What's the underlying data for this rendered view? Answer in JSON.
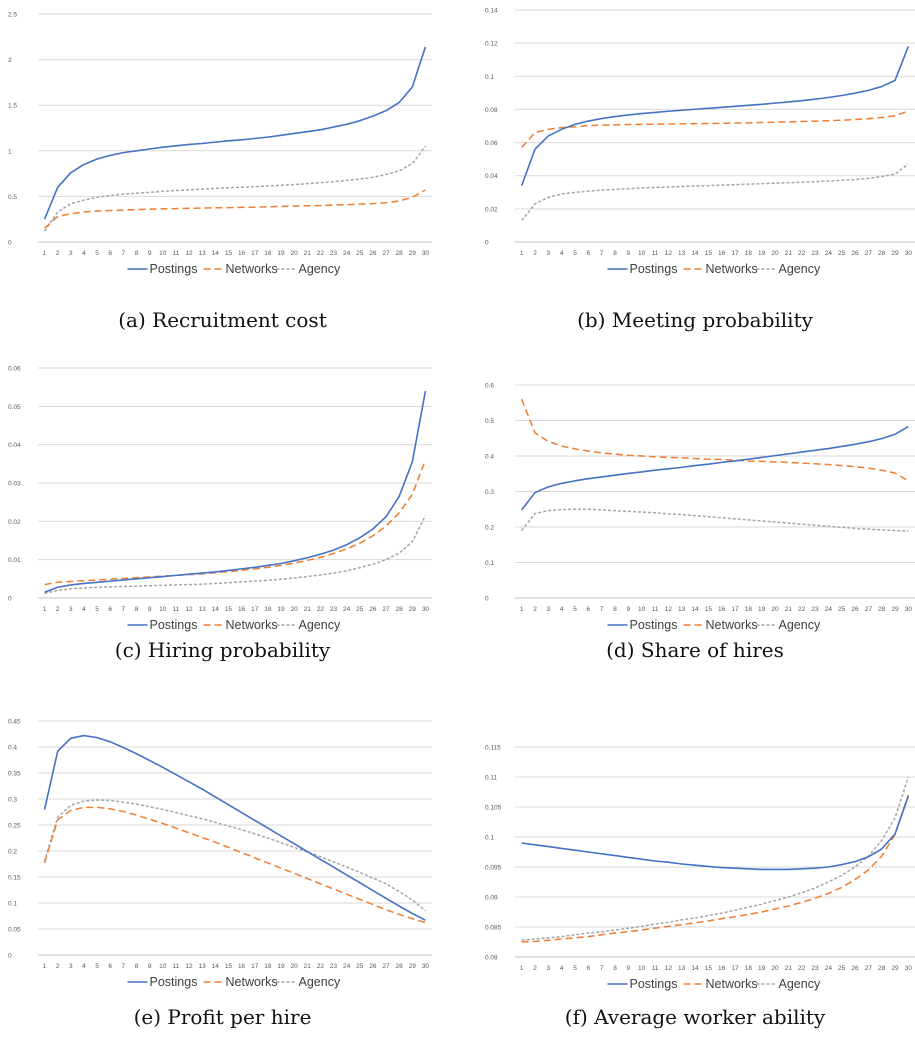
{
  "legend_labels": [
    "Postings",
    "Networks",
    "Agency"
  ],
  "series_colors": {
    "Postings": "#4472c4",
    "Networks": "#ed7d31",
    "Agency": "#a5a5a5"
  },
  "chart_data": [
    {
      "type": "line",
      "caption": "(a) Recruitment cost",
      "x": [
        1,
        2,
        3,
        4,
        5,
        6,
        7,
        8,
        9,
        10,
        11,
        12,
        13,
        14,
        15,
        16,
        17,
        18,
        19,
        20,
        21,
        22,
        23,
        24,
        25,
        26,
        27,
        28,
        29,
        30
      ],
      "ylim": [
        0,
        2.5
      ],
      "yticks": [
        "0",
        "0.5",
        "1",
        "1.5",
        "2",
        "2.5"
      ],
      "ytick_values": [
        0,
        0.5,
        1,
        1.5,
        2,
        2.5
      ],
      "grid": true,
      "legend_position": "bottom",
      "series": [
        {
          "name": "Postings",
          "values": [
            0.25,
            0.6,
            0.76,
            0.85,
            0.91,
            0.95,
            0.98,
            1.0,
            1.02,
            1.04,
            1.055,
            1.07,
            1.08,
            1.095,
            1.11,
            1.12,
            1.135,
            1.15,
            1.17,
            1.19,
            1.21,
            1.23,
            1.26,
            1.29,
            1.33,
            1.38,
            1.44,
            1.53,
            1.7,
            2.14
          ]
        },
        {
          "name": "Networks",
          "values": [
            0.15,
            0.28,
            0.31,
            0.33,
            0.34,
            0.345,
            0.35,
            0.355,
            0.36,
            0.363,
            0.366,
            0.37,
            0.372,
            0.375,
            0.377,
            0.38,
            0.383,
            0.386,
            0.39,
            0.393,
            0.397,
            0.4,
            0.405,
            0.41,
            0.415,
            0.42,
            0.43,
            0.45,
            0.49,
            0.57
          ]
        },
        {
          "name": "Agency",
          "values": [
            0.12,
            0.33,
            0.42,
            0.46,
            0.49,
            0.51,
            0.525,
            0.535,
            0.545,
            0.555,
            0.565,
            0.572,
            0.58,
            0.587,
            0.595,
            0.6,
            0.607,
            0.615,
            0.622,
            0.63,
            0.64,
            0.65,
            0.662,
            0.675,
            0.69,
            0.71,
            0.74,
            0.78,
            0.86,
            1.05
          ]
        }
      ]
    },
    {
      "type": "line",
      "caption": "(b) Meeting probability",
      "x": [
        1,
        2,
        3,
        4,
        5,
        6,
        7,
        8,
        9,
        10,
        11,
        12,
        13,
        14,
        15,
        16,
        17,
        18,
        19,
        20,
        21,
        22,
        23,
        24,
        25,
        26,
        27,
        28,
        29,
        30
      ],
      "ylim": [
        0,
        0.14
      ],
      "yticks": [
        "0",
        "0.02",
        "0.04",
        "0.06",
        "0.08",
        "0.1",
        "0.12",
        "0.14"
      ],
      "ytick_values": [
        0,
        0.02,
        0.04,
        0.06,
        0.08,
        0.1,
        0.12,
        0.14
      ],
      "grid": true,
      "legend_position": "bottom",
      "series": [
        {
          "name": "Postings",
          "values": [
            0.034,
            0.056,
            0.064,
            0.068,
            0.071,
            0.073,
            0.0745,
            0.0757,
            0.0767,
            0.0775,
            0.0782,
            0.0789,
            0.0795,
            0.0801,
            0.0807,
            0.0813,
            0.0819,
            0.0825,
            0.0831,
            0.0838,
            0.0845,
            0.0853,
            0.0862,
            0.0872,
            0.0884,
            0.0898,
            0.0915,
            0.0938,
            0.0975,
            0.118
          ]
        },
        {
          "name": "Networks",
          "values": [
            0.057,
            0.066,
            0.068,
            0.069,
            0.0695,
            0.0702,
            0.0705,
            0.0707,
            0.0709,
            0.071,
            0.0711,
            0.0712,
            0.0713,
            0.0714,
            0.0715,
            0.0716,
            0.0718,
            0.0719,
            0.0721,
            0.0723,
            0.0725,
            0.0727,
            0.0729,
            0.0732,
            0.0735,
            0.0739,
            0.0744,
            0.0751,
            0.0762,
            0.079
          ]
        },
        {
          "name": "Agency",
          "values": [
            0.013,
            0.023,
            0.027,
            0.029,
            0.03,
            0.0307,
            0.0313,
            0.0318,
            0.0322,
            0.0326,
            0.0329,
            0.0332,
            0.0335,
            0.0338,
            0.034,
            0.0343,
            0.0346,
            0.0349,
            0.0352,
            0.0355,
            0.0358,
            0.0361,
            0.0364,
            0.0368,
            0.0372,
            0.0377,
            0.0384,
            0.0395,
            0.041,
            0.047
          ]
        }
      ]
    },
    {
      "type": "line",
      "caption": "(c) Hiring probability",
      "x": [
        1,
        2,
        3,
        4,
        5,
        6,
        7,
        8,
        9,
        10,
        11,
        12,
        13,
        14,
        15,
        16,
        17,
        18,
        19,
        20,
        21,
        22,
        23,
        24,
        25,
        26,
        27,
        28,
        29,
        30
      ],
      "ylim": [
        0,
        0.06
      ],
      "yticks": [
        "0",
        "0.01",
        "0.02",
        "0.03",
        "0.04",
        "0.05",
        "0.06"
      ],
      "ytick_values": [
        0,
        0.01,
        0.02,
        0.03,
        0.04,
        0.05,
        0.06
      ],
      "grid": true,
      "legend_position": "bottom",
      "series": [
        {
          "name": "Postings",
          "values": [
            0.0015,
            0.0028,
            0.0034,
            0.0038,
            0.0041,
            0.0044,
            0.0047,
            0.005,
            0.0053,
            0.0056,
            0.0059,
            0.0062,
            0.0065,
            0.0068,
            0.0072,
            0.0076,
            0.008,
            0.0085,
            0.009,
            0.0097,
            0.0105,
            0.0114,
            0.0125,
            0.0139,
            0.0157,
            0.018,
            0.0212,
            0.0265,
            0.0355,
            0.054
          ]
        },
        {
          "name": "Networks",
          "values": [
            0.0035,
            0.0041,
            0.0043,
            0.0045,
            0.0047,
            0.0049,
            0.0051,
            0.0053,
            0.0055,
            0.0057,
            0.0059,
            0.0061,
            0.0063,
            0.0066,
            0.0069,
            0.0072,
            0.0076,
            0.008,
            0.0085,
            0.0091,
            0.0098,
            0.0106,
            0.0116,
            0.0128,
            0.0143,
            0.0162,
            0.0188,
            0.0222,
            0.027,
            0.036
          ]
        },
        {
          "name": "Agency",
          "values": [
            0.0012,
            0.002,
            0.0024,
            0.0026,
            0.0028,
            0.0029,
            0.003,
            0.0031,
            0.0032,
            0.0033,
            0.0034,
            0.0035,
            0.0036,
            0.0038,
            0.004,
            0.0042,
            0.0044,
            0.0046,
            0.0049,
            0.0052,
            0.0056,
            0.006,
            0.0065,
            0.0071,
            0.0079,
            0.0088,
            0.01,
            0.0117,
            0.0147,
            0.0215
          ]
        }
      ]
    },
    {
      "type": "line",
      "caption": "(d) Share of hires",
      "x": [
        1,
        2,
        3,
        4,
        5,
        6,
        7,
        8,
        9,
        10,
        11,
        12,
        13,
        14,
        15,
        16,
        17,
        18,
        19,
        20,
        21,
        22,
        23,
        24,
        25,
        26,
        27,
        28,
        29,
        30
      ],
      "ylim": [
        0,
        0.6
      ],
      "yticks": [
        "0",
        "0.1",
        "0.2",
        "0.3",
        "0.4",
        "0.5",
        "0.6"
      ],
      "ytick_values": [
        0,
        0.1,
        0.2,
        0.3,
        0.4,
        0.5,
        0.6
      ],
      "grid": true,
      "legend_position": "bottom",
      "series": [
        {
          "name": "Postings",
          "values": [
            0.248,
            0.297,
            0.313,
            0.323,
            0.33,
            0.336,
            0.341,
            0.346,
            0.351,
            0.355,
            0.36,
            0.364,
            0.368,
            0.373,
            0.377,
            0.382,
            0.386,
            0.391,
            0.396,
            0.401,
            0.406,
            0.411,
            0.416,
            0.421,
            0.427,
            0.433,
            0.44,
            0.449,
            0.461,
            0.483
          ]
        },
        {
          "name": "Networks",
          "values": [
            0.56,
            0.465,
            0.441,
            0.428,
            0.42,
            0.414,
            0.409,
            0.405,
            0.402,
            0.4,
            0.398,
            0.396,
            0.395,
            0.393,
            0.391,
            0.39,
            0.388,
            0.386,
            0.385,
            0.383,
            0.382,
            0.38,
            0.378,
            0.376,
            0.373,
            0.37,
            0.366,
            0.36,
            0.352,
            0.33
          ]
        },
        {
          "name": "Agency",
          "values": [
            0.19,
            0.238,
            0.246,
            0.249,
            0.25,
            0.25,
            0.248,
            0.246,
            0.244,
            0.242,
            0.24,
            0.237,
            0.235,
            0.232,
            0.229,
            0.226,
            0.223,
            0.22,
            0.217,
            0.214,
            0.211,
            0.208,
            0.205,
            0.202,
            0.199,
            0.196,
            0.194,
            0.192,
            0.19,
            0.189
          ]
        }
      ]
    },
    {
      "type": "line",
      "caption": "(e) Profit per hire",
      "x": [
        1,
        2,
        3,
        4,
        5,
        6,
        7,
        8,
        9,
        10,
        11,
        12,
        13,
        14,
        15,
        16,
        17,
        18,
        19,
        20,
        21,
        22,
        23,
        24,
        25,
        26,
        27,
        28,
        29,
        30
      ],
      "ylim": [
        0,
        0.45
      ],
      "yticks": [
        "0",
        "0.05",
        "0.1",
        "0.15",
        "0.2",
        "0.25",
        "0.3",
        "0.35",
        "0.4",
        "0.45"
      ],
      "ytick_values": [
        0,
        0.05,
        0.1,
        0.15,
        0.2,
        0.25,
        0.3,
        0.35,
        0.4,
        0.45
      ],
      "grid": true,
      "legend_position": "bottom",
      "series": [
        {
          "name": "Postings",
          "values": [
            0.28,
            0.392,
            0.417,
            0.422,
            0.418,
            0.41,
            0.399,
            0.387,
            0.374,
            0.361,
            0.347,
            0.333,
            0.319,
            0.304,
            0.289,
            0.274,
            0.259,
            0.244,
            0.229,
            0.214,
            0.199,
            0.184,
            0.169,
            0.154,
            0.139,
            0.124,
            0.109,
            0.094,
            0.08,
            0.067
          ]
        },
        {
          "name": "Networks",
          "values": [
            0.177,
            0.26,
            0.278,
            0.284,
            0.284,
            0.281,
            0.276,
            0.269,
            0.261,
            0.253,
            0.244,
            0.235,
            0.226,
            0.217,
            0.207,
            0.197,
            0.187,
            0.177,
            0.167,
            0.157,
            0.147,
            0.137,
            0.127,
            0.117,
            0.107,
            0.097,
            0.087,
            0.078,
            0.07,
            0.062
          ]
        },
        {
          "name": "Agency",
          "values": [
            0.18,
            0.265,
            0.288,
            0.296,
            0.298,
            0.297,
            0.294,
            0.29,
            0.285,
            0.28,
            0.274,
            0.268,
            0.262,
            0.255,
            0.248,
            0.241,
            0.233,
            0.225,
            0.216,
            0.207,
            0.198,
            0.189,
            0.179,
            0.169,
            0.159,
            0.148,
            0.137,
            0.122,
            0.106,
            0.085
          ]
        }
      ]
    },
    {
      "type": "line",
      "caption": "(f) Average worker ability",
      "x": [
        1,
        2,
        3,
        4,
        5,
        6,
        7,
        8,
        9,
        10,
        11,
        12,
        13,
        14,
        15,
        16,
        17,
        18,
        19,
        20,
        21,
        22,
        23,
        24,
        25,
        26,
        27,
        28,
        29,
        30
      ],
      "ylim": [
        0.08,
        0.115
      ],
      "yticks": [
        "0.08",
        "0.085",
        "0.09",
        "0.095",
        "0.1",
        "0.105",
        "0.11",
        "0.115"
      ],
      "ytick_values": [
        0.08,
        0.085,
        0.09,
        0.095,
        0.1,
        0.105,
        0.11,
        0.115
      ],
      "grid": true,
      "legend_position": "bottom",
      "series": [
        {
          "name": "Postings",
          "values": [
            0.099,
            0.0987,
            0.0984,
            0.0981,
            0.0978,
            0.0975,
            0.0972,
            0.0969,
            0.0966,
            0.0963,
            0.096,
            0.0958,
            0.0955,
            0.0953,
            0.0951,
            0.0949,
            0.0948,
            0.0947,
            0.0946,
            0.0946,
            0.0946,
            0.0947,
            0.0948,
            0.095,
            0.0954,
            0.0959,
            0.0967,
            0.098,
            0.1005,
            0.1068
          ]
        },
        {
          "name": "Networks",
          "values": [
            0.0825,
            0.0826,
            0.0828,
            0.083,
            0.0832,
            0.0834,
            0.0837,
            0.084,
            0.0842,
            0.0845,
            0.0848,
            0.0851,
            0.0854,
            0.0857,
            0.086,
            0.0864,
            0.0867,
            0.0871,
            0.0875,
            0.088,
            0.0885,
            0.0891,
            0.0898,
            0.0906,
            0.0916,
            0.0929,
            0.0945,
            0.0968,
            0.1004,
            0.107
          ]
        },
        {
          "name": "Agency",
          "values": [
            0.0828,
            0.083,
            0.0832,
            0.0834,
            0.0837,
            0.084,
            0.0842,
            0.0845,
            0.0848,
            0.0851,
            0.0855,
            0.0858,
            0.0862,
            0.0865,
            0.0869,
            0.0873,
            0.0878,
            0.0883,
            0.0888,
            0.0894,
            0.09,
            0.0907,
            0.0915,
            0.0925,
            0.0936,
            0.095,
            0.0968,
            0.0994,
            0.1032,
            0.11
          ]
        }
      ]
    }
  ]
}
